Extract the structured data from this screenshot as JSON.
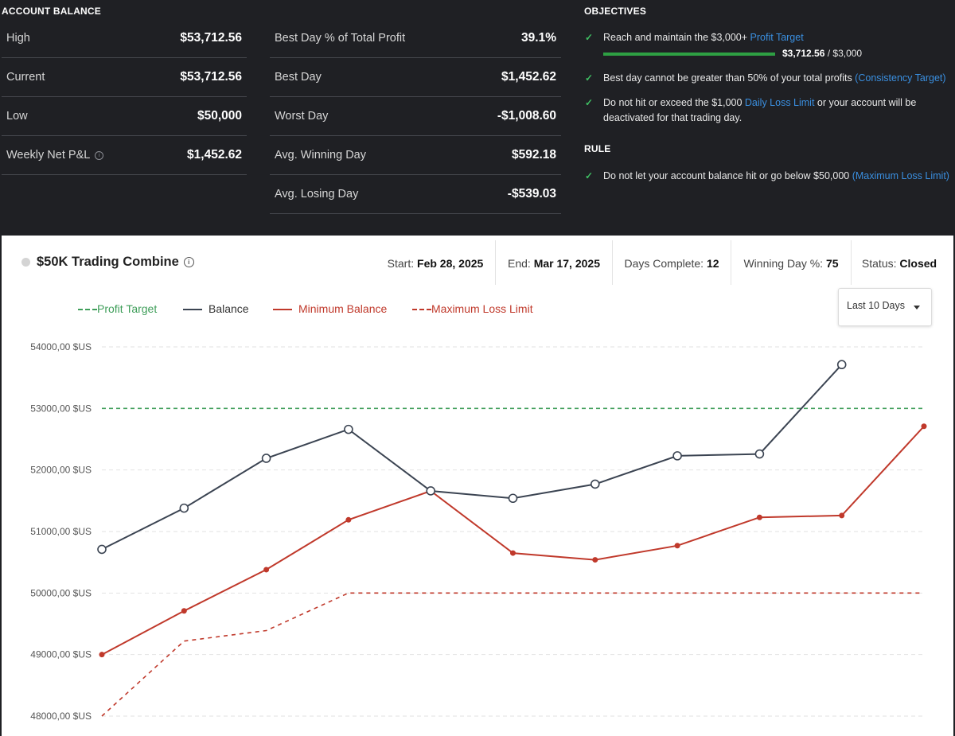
{
  "account_balance": {
    "title": "ACCOUNT BALANCE",
    "rows": [
      {
        "label": "High",
        "value": "$53,712.56"
      },
      {
        "label": "Current",
        "value": "$53,712.56"
      },
      {
        "label": "Low",
        "value": "$50,000"
      },
      {
        "label": "Weekly Net P&L",
        "value": "$1,452.62"
      }
    ]
  },
  "stats": {
    "rows": [
      {
        "label": "Best Day % of Total Profit",
        "value": "39.1%"
      },
      {
        "label": "Best Day",
        "value": "$1,452.62"
      },
      {
        "label": "Worst Day",
        "value": "-$1,008.60"
      },
      {
        "label": "Avg. Winning Day",
        "value": "$592.18"
      },
      {
        "label": "Avg. Losing Day",
        "value": "-$539.03"
      }
    ]
  },
  "objectives": {
    "title": "OBJECTIVES",
    "items": [
      {
        "text": "Reach and maintain the $3,000+ ",
        "link": "Profit Target",
        "suffix": ""
      },
      {
        "text": "Best day cannot be greater than 50% of your total profits ",
        "link": "(Consistency Target)",
        "suffix": ""
      },
      {
        "text": "Do not hit or exceed the $1,000 ",
        "link": "Daily Loss Limit",
        "suffix": " or your account will be deactivated for that trading day."
      }
    ],
    "progress": {
      "current": "$3,712.56",
      "target": " / $3,000",
      "fraction": 1.0
    }
  },
  "rule": {
    "title": "RULE",
    "items": [
      {
        "text": "Do not let your account balance hit or go below $50,000 ",
        "link": "(Maximum Loss Limit)"
      }
    ]
  },
  "panel": {
    "title": "$50K Trading Combine",
    "start_label": "Start: ",
    "start_value": "Feb 28, 2025",
    "end_label": "End: ",
    "end_value": "Mar 17, 2025",
    "days_label": "Days Complete: ",
    "days_value": "12",
    "winning_label": "Winning Day %: ",
    "winning_value": "75",
    "status_label": "Status: ",
    "status_value": "Closed",
    "range_select": "Last 10 Days"
  },
  "colors": {
    "profit_target": "#3f9e5a",
    "balance": "#3b4452",
    "minimum_balance": "#c0392b",
    "max_loss": "#c0392b",
    "check": "#3fbf63",
    "link": "#3a8fe0"
  },
  "chart_data": {
    "type": "line",
    "x": [
      1,
      2,
      3,
      4,
      5,
      6,
      7,
      8,
      9,
      10,
      11
    ],
    "ylim": [
      48000,
      54000
    ],
    "ytick_values": [
      48000,
      49000,
      50000,
      51000,
      52000,
      53000,
      54000
    ],
    "ytick_labels": [
      "48000,00 $US",
      "49000,00 $US",
      "50000,00 $US",
      "51000,00 $US",
      "52000,00 $US",
      "53000,00 $US",
      "54000,00 $US"
    ],
    "grid": true,
    "series": [
      {
        "name": "Profit Target",
        "style": "dashed",
        "values": [
          53000,
          53000,
          53000,
          53000,
          53000,
          53000,
          53000,
          53000,
          53000,
          53000,
          53000
        ]
      },
      {
        "name": "Balance",
        "style": "solid",
        "markers": "open",
        "values": [
          50710,
          51380,
          52190,
          52660,
          51660,
          51540,
          51770,
          52230,
          52260,
          53712.56,
          null
        ]
      },
      {
        "name": "Minimum Balance",
        "style": "solid",
        "markers": "filled",
        "values": [
          49000,
          49710,
          50380,
          51190,
          51660,
          50650,
          50540,
          50770,
          51230,
          51260,
          52710
        ]
      },
      {
        "name": "Maximum Loss Limit",
        "style": "dashed",
        "values": [
          48000,
          49220,
          49390,
          50000,
          50000,
          50000,
          50000,
          50000,
          50000,
          50000,
          50000
        ]
      }
    ]
  }
}
